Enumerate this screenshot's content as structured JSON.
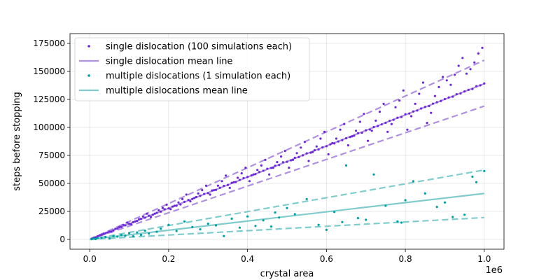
{
  "chart_data": {
    "type": "scatter",
    "title": "",
    "xlabel": "crystal area",
    "ylabel": "steps before stopping",
    "x_offset_label": "1e6",
    "xlim": [
      -0.05,
      1.05
    ],
    "ylim": [
      -8750,
      183750
    ],
    "x_scale_factor": 1000000,
    "x_ticks": [
      0.0,
      0.2,
      0.4,
      0.6,
      0.8,
      1.0
    ],
    "x_tick_labels": [
      "0.0",
      "0.2",
      "0.4",
      "0.6",
      "0.8",
      "1.0"
    ],
    "y_ticks": [
      0,
      25000,
      50000,
      75000,
      100000,
      125000,
      150000,
      175000
    ],
    "y_tick_labels": [
      "0",
      "25000",
      "50000",
      "75000",
      "100000",
      "125000",
      "150000",
      "175000"
    ],
    "grid": true,
    "legend_position": "top-left",
    "legend": [
      {
        "label": "single dislocation (100 simulations each)",
        "kind": "points",
        "series": "single"
      },
      {
        "label": "single dislocation mean line",
        "kind": "line",
        "series": "single"
      },
      {
        "label": "multiple dislocations (1 simulation each)",
        "kind": "points",
        "series": "multiple"
      },
      {
        "label": "multiple dislocations mean line",
        "kind": "line",
        "series": "multiple"
      }
    ],
    "series": [
      {
        "name": "single dislocation (100 simulations each)",
        "color": "#6d28d9",
        "line_color": "#b090e0",
        "mean_line": {
          "x": [
            0,
            1.0
          ],
          "y": [
            0,
            139000
          ]
        },
        "upper_band": {
          "x": [
            0,
            1.0
          ],
          "y": [
            0,
            160000
          ]
        },
        "lower_band": {
          "x": [
            0,
            1.0
          ],
          "y": [
            0,
            119000
          ]
        },
        "points": {
          "x": [
            0.01,
            0.02,
            0.03,
            0.04,
            0.05,
            0.06,
            0.07,
            0.08,
            0.09,
            0.1,
            0.11,
            0.12,
            0.13,
            0.14,
            0.15,
            0.16,
            0.17,
            0.18,
            0.19,
            0.2,
            0.21,
            0.22,
            0.23,
            0.24,
            0.25,
            0.26,
            0.27,
            0.28,
            0.29,
            0.3,
            0.31,
            0.32,
            0.33,
            0.34,
            0.35,
            0.36,
            0.37,
            0.38,
            0.39,
            0.4,
            0.41,
            0.42,
            0.43,
            0.44,
            0.45,
            0.46,
            0.47,
            0.48,
            0.49,
            0.5,
            0.51,
            0.52,
            0.53,
            0.54,
            0.55,
            0.56,
            0.57,
            0.58,
            0.59,
            0.6,
            0.61,
            0.62,
            0.63,
            0.64,
            0.65,
            0.66,
            0.67,
            0.68,
            0.69,
            0.7,
            0.71,
            0.72,
            0.73,
            0.74,
            0.75,
            0.76,
            0.77,
            0.78,
            0.79,
            0.8,
            0.81,
            0.82,
            0.83,
            0.84,
            0.85,
            0.86,
            0.87,
            0.88,
            0.89,
            0.9,
            0.91,
            0.92,
            0.93,
            0.94,
            0.95,
            0.96,
            0.97,
            0.98,
            0.99,
            1.0,
            0.955,
            0.965,
            0.975,
            0.985,
            0.995,
            0.905,
            0.915,
            0.925,
            0.935,
            0.945,
            0.855,
            0.865,
            0.875,
            0.885,
            0.895,
            0.805,
            0.815,
            0.825,
            0.835,
            0.845,
            0.755,
            0.765,
            0.775,
            0.785,
            0.795,
            0.705,
            0.715,
            0.725,
            0.735,
            0.745,
            0.655,
            0.665,
            0.675,
            0.685,
            0.695,
            0.605,
            0.615,
            0.625,
            0.635,
            0.645,
            0.555,
            0.565,
            0.575,
            0.585,
            0.595,
            0.505,
            0.515,
            0.525,
            0.535,
            0.545,
            0.455,
            0.465,
            0.475,
            0.485,
            0.495,
            0.405,
            0.415,
            0.425,
            0.435,
            0.445,
            0.355,
            0.365,
            0.375,
            0.385,
            0.395,
            0.305,
            0.315,
            0.325,
            0.335,
            0.345,
            0.255,
            0.265,
            0.275,
            0.285,
            0.295,
            0.205,
            0.215,
            0.225,
            0.235,
            0.245,
            0.155,
            0.165,
            0.175,
            0.185,
            0.195,
            0.105,
            0.115,
            0.125,
            0.135,
            0.145,
            0.055,
            0.065,
            0.075,
            0.085,
            0.095,
            0.015,
            0.025,
            0.035,
            0.045,
            0.005
          ],
          "y": [
            1500,
            2800,
            4200,
            5500,
            7000,
            8100,
            9800,
            11200,
            12600,
            13900,
            15400,
            16600,
            18300,
            19400,
            21200,
            22000,
            23700,
            24800,
            26900,
            27700,
            29300,
            30100,
            31200,
            33500,
            35200,
            36100,
            37800,
            38900,
            40600,
            41300,
            43700,
            44200,
            46100,
            47800,
            48600,
            50500,
            51200,
            53100,
            54700,
            55800,
            57100,
            58300,
            60200,
            61300,
            63100,
            63800,
            65700,
            66400,
            68900,
            69300,
            70600,
            72900,
            73500,
            75100,
            76800,
            77400,
            79600,
            80300,
            82100,
            83200,
            84900,
            85700,
            87400,
            88600,
            90300,
            91400,
            92600,
            94800,
            95200,
            97400,
            98100,
            100300,
            101200,
            102700,
            104100,
            105900,
            106800,
            108600,
            109300,
            111700,
            112400,
            114200,
            115100,
            116900,
            118300,
            119100,
            121200,
            122500,
            123600,
            125300,
            126700,
            127400,
            129600,
            130300,
            132100,
            133500,
            134300,
            136800,
            137600,
            139200,
            148000,
            152000,
            158000,
            166000,
            171000,
            142000,
            138000,
            147000,
            155000,
            162000,
            104000,
            113000,
            128000,
            136000,
            145000,
            98000,
            110000,
            121000,
            130000,
            140000,
            96000,
            103000,
            118000,
            124000,
            133000,
            88000,
            97000,
            106000,
            114000,
            121000,
            84000,
            92000,
            97000,
            105000,
            112000,
            76000,
            86000,
            90000,
            98000,
            103000,
            70000,
            78000,
            83000,
            90000,
            96000,
            64000,
            71000,
            77000,
            82000,
            87000,
            58000,
            64000,
            69000,
            74000,
            79000,
            52000,
            58000,
            62000,
            66000,
            71000,
            46000,
            51000,
            55000,
            59000,
            64000,
            40000,
            44000,
            48000,
            52000,
            57000,
            34000,
            37000,
            41000,
            44000,
            48000,
            27000,
            30000,
            33000,
            36000,
            40000,
            20000,
            23000,
            26000,
            28000,
            31000,
            13500,
            16000,
            18000,
            20500,
            23000,
            7000,
            9500,
            11000,
            13000,
            15000,
            1800,
            3500,
            5000,
            6200,
            700
          ]
        }
      },
      {
        "name": "multiple dislocations (1 simulation each)",
        "color": "#00a0a0",
        "line_color": "#80cccc",
        "mean_line": {
          "x": [
            0,
            1.0
          ],
          "y": [
            0,
            41000
          ]
        },
        "upper_band": {
          "x": [
            0,
            1.0
          ],
          "y": [
            0,
            62000
          ]
        },
        "lower_band": {
          "x": [
            0,
            1.0
          ],
          "y": [
            0,
            19500
          ]
        },
        "points": {
          "x": [
            0.005,
            0.01,
            0.015,
            0.02,
            0.03,
            0.04,
            0.05,
            0.06,
            0.07,
            0.08,
            0.09,
            0.1,
            0.11,
            0.12,
            0.13,
            0.14,
            0.15,
            0.17,
            0.18,
            0.2,
            0.22,
            0.24,
            0.26,
            0.28,
            0.3,
            0.32,
            0.34,
            0.36,
            0.38,
            0.4,
            0.42,
            0.44,
            0.46,
            0.48,
            0.5,
            0.52,
            0.55,
            0.58,
            0.6,
            0.62,
            0.65,
            0.68,
            0.7,
            0.72,
            0.75,
            0.78,
            0.8,
            0.82,
            0.85,
            0.88,
            0.9,
            0.92,
            0.95,
            0.98,
            1.0,
            0.47,
            0.64,
            0.79,
            0.97
          ],
          "y": [
            200,
            800,
            300,
            1200,
            1500,
            2200,
            800,
            3000,
            2500,
            4000,
            3300,
            5500,
            2800,
            6200,
            4100,
            7800,
            5200,
            6800,
            9500,
            13000,
            7500,
            16000,
            11000,
            9000,
            14000,
            12500,
            3000,
            18500,
            10500,
            20500,
            12000,
            17000,
            11500,
            19500,
            28000,
            22500,
            36000,
            13000,
            8500,
            24500,
            66000,
            19000,
            17500,
            58000,
            30000,
            16000,
            35000,
            52000,
            41000,
            29000,
            33000,
            20000,
            22000,
            51000,
            61000,
            24000,
            15500,
            15000,
            56000
          ]
        }
      }
    ]
  }
}
